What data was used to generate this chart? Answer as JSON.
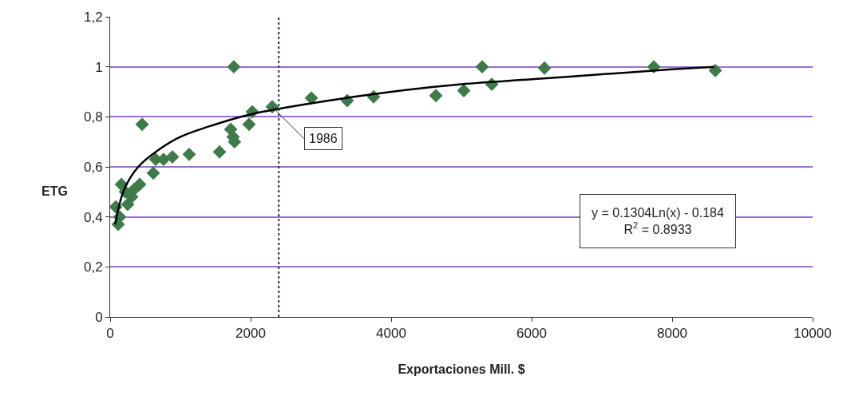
{
  "chart_data": {
    "type": "scatter",
    "xlabel": "Exportaciones Mill. $",
    "ylabel": "ETG",
    "xlim": [
      0,
      10000
    ],
    "xticks": [
      0,
      2000,
      4000,
      6000,
      8000,
      10000
    ],
    "ylim": [
      0,
      1.2
    ],
    "yticks": [
      0,
      {
        "value": 0.2,
        "label": "0,2"
      },
      {
        "value": 0.4,
        "label": "0,4"
      },
      {
        "value": 0.6,
        "label": "0,6"
      },
      {
        "value": 0.8,
        "label": "0,8"
      },
      1,
      {
        "value": 1.2,
        "label": "1,2"
      }
    ],
    "grid": "y",
    "series": [
      {
        "marker": "diamond",
        "color": "#3f7a4a",
        "x": [
          80,
          114,
          136,
          160,
          216,
          250,
          307,
          341,
          420,
          455,
          614,
          648,
          760,
          886,
          1125,
          1557,
          1716,
          1750,
          1770,
          1760,
          1977,
          2023,
          2307,
          2864,
          3375,
          3750,
          4636,
          5034,
          5295,
          5432,
          6182,
          7739,
          8614
        ],
        "values": [
          0.44,
          0.37,
          0.4,
          0.53,
          0.5,
          0.45,
          0.48,
          0.51,
          0.53,
          0.77,
          0.575,
          0.63,
          0.63,
          0.64,
          0.65,
          0.66,
          0.75,
          0.72,
          0.7,
          1.0,
          0.77,
          0.82,
          0.84,
          0.875,
          0.865,
          0.88,
          0.885,
          0.905,
          1.0,
          0.93,
          0.995,
          1.0,
          0.985
        ]
      },
      {
        "type": "line",
        "color": "#000000",
        "line_style": "solid",
        "x": [
          70,
          200,
          400,
          700,
          1000,
          1500,
          2000,
          3000,
          4000,
          5000,
          6000,
          7000,
          8000,
          8600
        ],
        "values": [
          0.37,
          0.51,
          0.6,
          0.67,
          0.72,
          0.77,
          0.81,
          0.86,
          0.9,
          0.93,
          0.95,
          0.97,
          0.99,
          1.0
        ]
      }
    ],
    "ref_lines": [
      {
        "axis": "x",
        "value": 2400,
        "color": "#333333",
        "line_style": "dotted"
      }
    ],
    "annotations": [
      {
        "text": "1986",
        "x": 2307,
        "y": 0.84
      },
      "y = 0.1304Ln(x) - 0.184",
      "R$^{2}$ = 0.8933"
    ]
  }
}
